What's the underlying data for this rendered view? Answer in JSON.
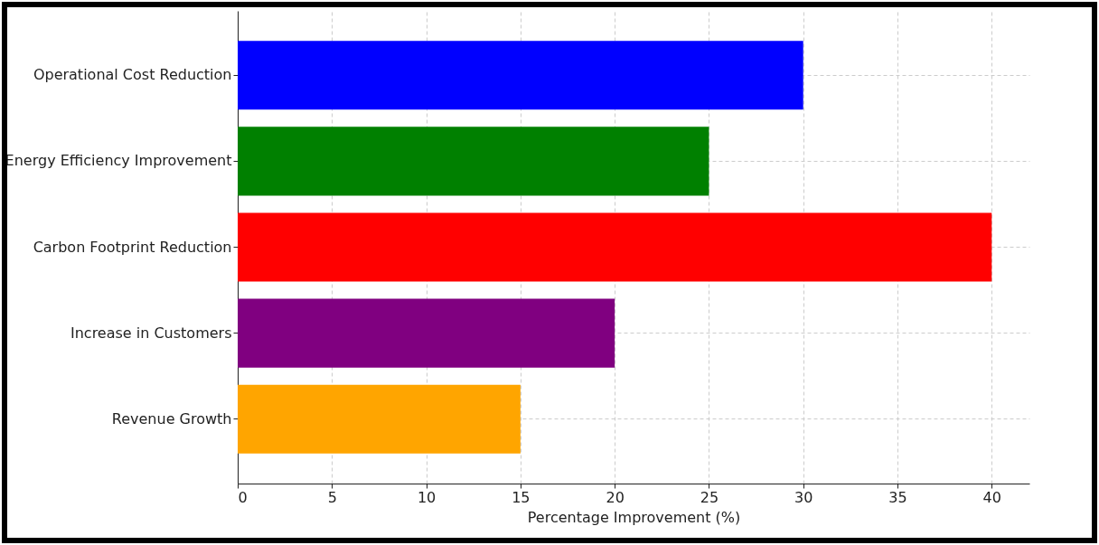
{
  "chart_data": {
    "type": "bar",
    "orientation": "horizontal",
    "xlabel": "Percentage Improvement (%)",
    "categories": [
      "Operational Cost Reduction",
      "Energy Efficiency Improvement",
      "Carbon Footprint Reduction",
      "Increase in Customers",
      "Revenue Growth"
    ],
    "values": [
      30,
      25,
      40,
      20,
      15
    ],
    "colors": [
      "#0000ff",
      "#008000",
      "#ff0000",
      "#800080",
      "#ffa500"
    ],
    "xlim": [
      0,
      42
    ],
    "xticks": [
      0,
      5,
      10,
      15,
      20,
      25,
      30,
      35,
      40
    ],
    "grid": true
  }
}
